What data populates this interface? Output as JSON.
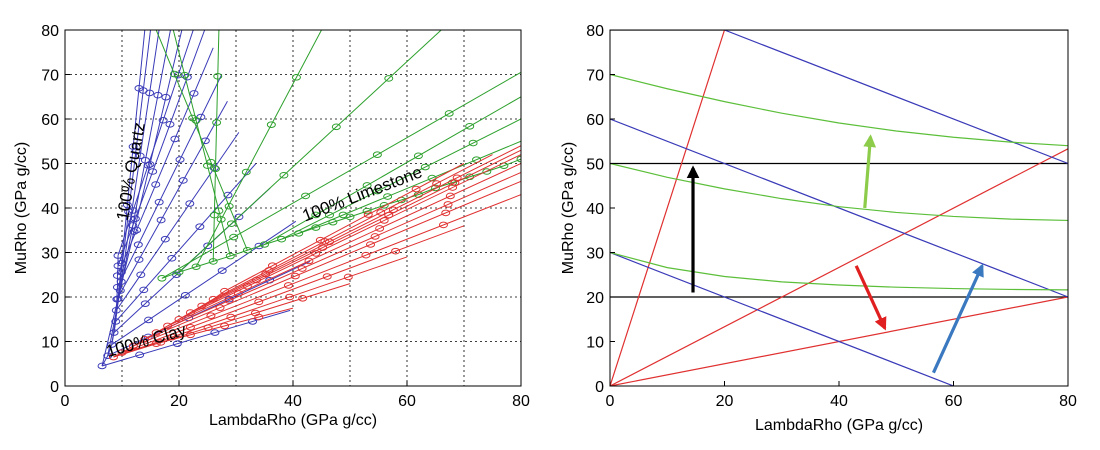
{
  "chart_data": [
    {
      "type": "line",
      "panel": "left",
      "xlabel": "LambdaRho (GPa g/cc)",
      "ylabel": "MuRho (GPa g/cc)",
      "xlim": [
        0,
        80
      ],
      "ylim": [
        0,
        80
      ],
      "xticks": [
        0,
        20,
        40,
        60,
        80
      ],
      "yticks": [
        0,
        10,
        20,
        30,
        40,
        50,
        60,
        70,
        80
      ],
      "grid": "dotted",
      "colors": {
        "blue": "#3a3ab8",
        "green": "#2ca02c",
        "red": "#e03030"
      },
      "annotations": [
        {
          "text": "100% Quartz",
          "x": 12.5,
          "y": 48,
          "angle": -80
        },
        {
          "text": "100% Limestone",
          "x": 52.5,
          "y": 42,
          "angle": -21
        },
        {
          "text": "100% Clay",
          "x": 14.5,
          "y": 9,
          "angle": -16
        }
      ],
      "families": [
        {
          "name": "Quartz-Clay",
          "color_key": "blue",
          "base": [
            [
              6.5,
              4.5
            ],
            [
              7.5,
              6.8
            ],
            [
              8.2,
              9.3
            ],
            [
              8.6,
              12
            ],
            [
              8.9,
              14.5
            ],
            [
              9.0,
              17
            ],
            [
              9.1,
              19.5
            ],
            [
              9.2,
              22.2
            ],
            [
              9.2,
              24.8
            ],
            [
              9.3,
              27
            ],
            [
              9.3,
              29.3
            ]
          ],
          "ends": [
            [
              39.5,
              17
            ],
            [
              43,
              28
            ],
            [
              40.5,
              37
            ],
            [
              36,
              44.5
            ],
            [
              33.5,
              50
            ],
            [
              30.5,
              57
            ],
            [
              28.5,
              64
            ],
            [
              27.5,
              70
            ],
            [
              26,
              76
            ],
            [
              24.5,
              80
            ],
            [
              22.5,
              80
            ],
            [
              20.5,
              80
            ],
            [
              18.5,
              80
            ],
            [
              16.5,
              80
            ],
            [
              15,
              80
            ],
            [
              14,
              80
            ]
          ]
        },
        {
          "name": "Limestone",
          "color_key": "green",
          "base": [
            [
              17,
              24.2
            ],
            [
              20,
              25.6
            ],
            [
              23,
              26.8
            ],
            [
              26,
              28
            ],
            [
              29,
              29.2
            ],
            [
              32,
              30.5
            ],
            [
              35,
              31.8
            ],
            [
              38,
              33
            ],
            [
              41,
              34.3
            ],
            [
              44,
              35.6
            ],
            [
              47,
              36.8
            ],
            [
              50,
              38
            ],
            [
              53,
              39.3
            ],
            [
              56,
              40.6
            ],
            [
              59,
              41.8
            ],
            [
              62,
              43
            ],
            [
              65,
              44.5
            ],
            [
              68,
              45.7
            ],
            [
              71,
              47
            ],
            [
              74,
              48.2
            ],
            [
              77,
              49.5
            ],
            [
              80,
              51
            ]
          ],
          "ends": [
            [
              80,
              70.5
            ],
            [
              66,
              80
            ],
            [
              45,
              80
            ],
            [
              27,
              80
            ],
            [
              19,
              80
            ],
            [
              16,
              80
            ],
            [
              80,
              65
            ],
            [
              80,
              60
            ],
            [
              80,
              55
            ]
          ]
        },
        {
          "name": "Clay",
          "color_key": "red",
          "base": [
            [
              8.5,
              6.5
            ],
            [
              10,
              7.5
            ],
            [
              12,
              9
            ],
            [
              14,
              10.5
            ],
            [
              16,
              12
            ],
            [
              18,
              13.5
            ],
            [
              20,
              15
            ],
            [
              22,
              16.5
            ],
            [
              24,
              18
            ],
            [
              26,
              19.5
            ],
            [
              28,
              21.3
            ]
          ],
          "ends": [
            [
              60,
              29
            ],
            [
              70,
              36
            ],
            [
              80,
              43
            ],
            [
              80,
              46
            ],
            [
              80,
              48
            ],
            [
              80,
              50
            ],
            [
              80,
              52
            ],
            [
              80,
              53
            ],
            [
              80,
              54
            ],
            [
              75,
              52
            ],
            [
              70,
              50
            ],
            [
              50,
              23
            ],
            [
              40,
              17.5
            ]
          ]
        }
      ]
    },
    {
      "type": "line",
      "panel": "right",
      "xlabel": "LambdaRho (GPa g/cc)",
      "ylabel": "MuRho (GPa g/cc)",
      "xlim": [
        0,
        80
      ],
      "ylim": [
        0,
        80
      ],
      "xticks": [
        0,
        20,
        40,
        60,
        80
      ],
      "yticks": [
        0,
        10,
        20,
        30,
        40,
        50,
        60,
        70,
        80
      ],
      "grid": "off",
      "series": [
        {
          "name": "black-line-50",
          "color": "#000000",
          "points": [
            [
              0,
              50
            ],
            [
              80,
              50
            ]
          ]
        },
        {
          "name": "black-line-20",
          "color": "#000000",
          "points": [
            [
              0,
              20
            ],
            [
              80,
              20
            ]
          ]
        },
        {
          "name": "black-line-80",
          "color": "#000000",
          "points": [
            [
              0,
              80
            ],
            [
              80,
              80
            ]
          ]
        },
        {
          "name": "red-line-steep",
          "color": "#e03030",
          "points": [
            [
              0,
              0
            ],
            [
              20,
              80
            ]
          ]
        },
        {
          "name": "red-line-mid",
          "color": "#e03030",
          "points": [
            [
              0,
              0
            ],
            [
              80,
              53.3
            ]
          ]
        },
        {
          "name": "red-line-shallow",
          "color": "#e03030",
          "points": [
            [
              0,
              0
            ],
            [
              80,
              20
            ]
          ]
        },
        {
          "name": "blue-line-upper",
          "color": "#3a3ab8",
          "points": [
            [
              20,
              80
            ],
            [
              80,
              50
            ]
          ]
        },
        {
          "name": "blue-line-middle",
          "color": "#3a3ab8",
          "points": [
            [
              0,
              60
            ],
            [
              80,
              20
            ]
          ]
        },
        {
          "name": "blue-line-lower",
          "color": "#3a3ab8",
          "points": [
            [
              0,
              30
            ],
            [
              60,
              0
            ]
          ]
        },
        {
          "name": "green-curve-upper",
          "color": "#5cbf3a",
          "points": [
            [
              0,
              70
            ],
            [
              10,
              66.8
            ],
            [
              20,
              63.9
            ],
            [
              30,
              61.3
            ],
            [
              40,
              59.1
            ],
            [
              50,
              57.3
            ],
            [
              60,
              55.9
            ],
            [
              70,
              54.8
            ],
            [
              80,
              54
            ]
          ]
        },
        {
          "name": "green-curve-middle",
          "color": "#5cbf3a",
          "points": [
            [
              0,
              50
            ],
            [
              10,
              46.9
            ],
            [
              20,
              44.3
            ],
            [
              30,
              42.1
            ],
            [
              40,
              40.3
            ],
            [
              50,
              39
            ],
            [
              60,
              38.1
            ],
            [
              70,
              37.5
            ],
            [
              80,
              37.2
            ]
          ]
        },
        {
          "name": "green-curve-lower",
          "color": "#5cbf3a",
          "points": [
            [
              0,
              30
            ],
            [
              10,
              26.6
            ],
            [
              20,
              24.6
            ],
            [
              30,
              23.4
            ],
            [
              40,
              22.7
            ],
            [
              50,
              22.2
            ],
            [
              60,
              21.9
            ],
            [
              70,
              21.7
            ],
            [
              80,
              21.6
            ]
          ]
        }
      ],
      "arrows": [
        {
          "name": "black-arrow",
          "color": "#000000",
          "from": [
            14.5,
            21
          ],
          "to": [
            14.5,
            49
          ]
        },
        {
          "name": "green-arrow",
          "color": "#8ccc4a",
          "from": [
            44.5,
            40
          ],
          "to": [
            45.5,
            56
          ]
        },
        {
          "name": "red-arrow",
          "color": "#e02020",
          "from": [
            43,
            27
          ],
          "to": [
            48,
            13
          ]
        },
        {
          "name": "steelblue-arrow",
          "color": "#3a78c0",
          "from": [
            56.5,
            3
          ],
          "to": [
            65,
            27
          ]
        }
      ]
    }
  ]
}
